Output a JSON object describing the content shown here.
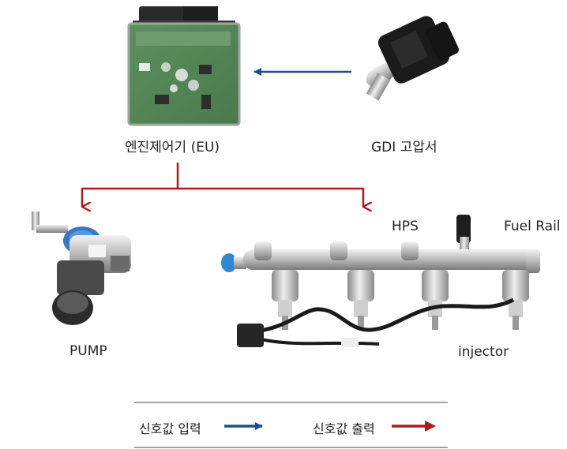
{
  "labels": {
    "ecu": "엔진제어기 (EU)",
    "sensor": "GDI 고압서",
    "pump": "PUMP",
    "hps": "HPS",
    "fuel_rail": "Fuel Rail",
    "injector": "injector"
  },
  "legend": {
    "input": "신호값 입력",
    "output": "신호값 출력"
  },
  "colors": {
    "input_arrow": "#1c4f8e",
    "output_arrow": "#b3191b"
  }
}
